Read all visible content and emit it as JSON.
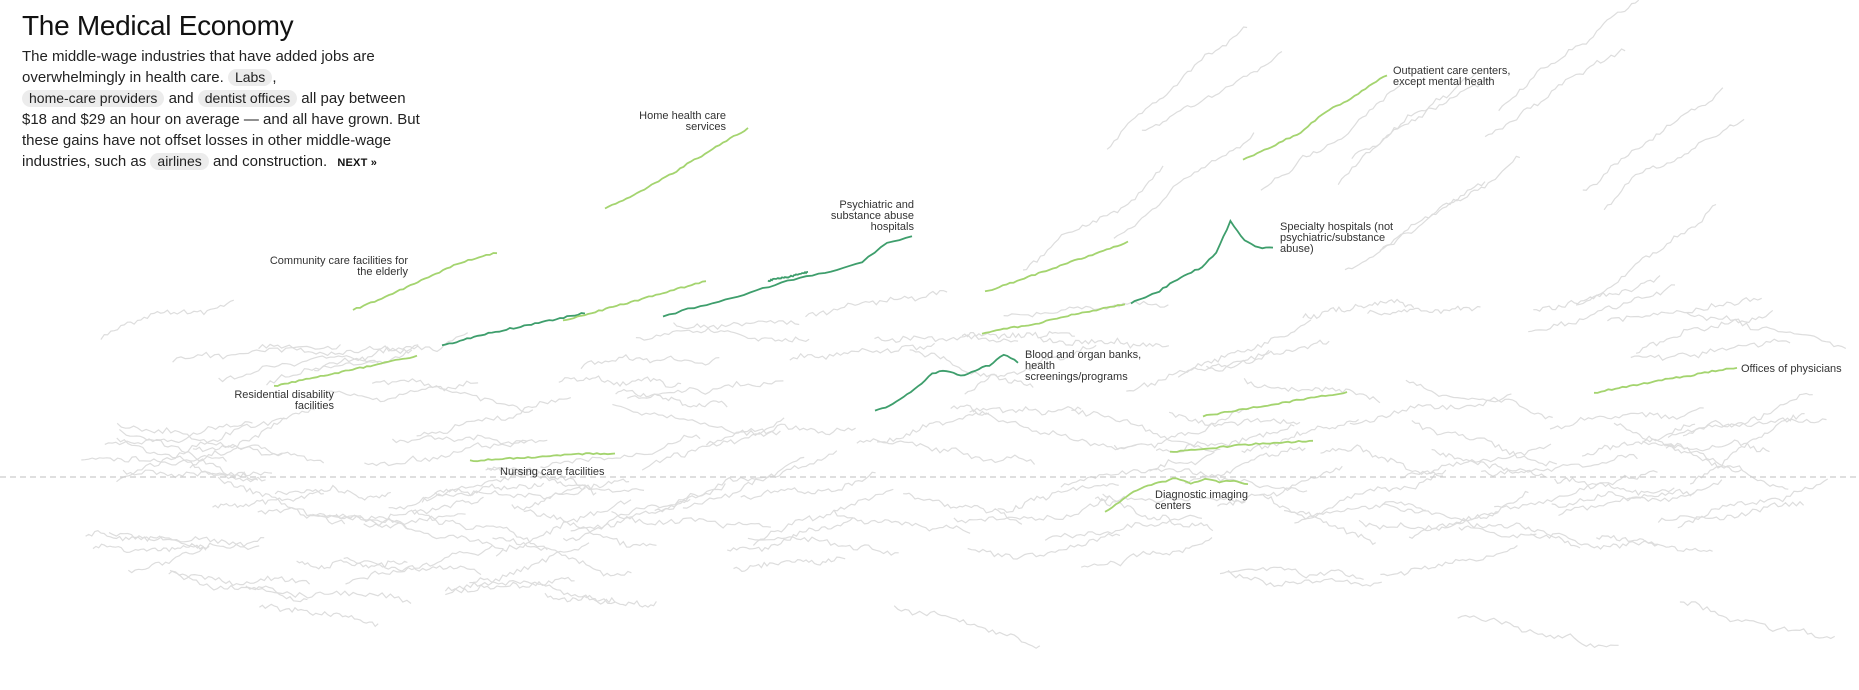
{
  "header": {
    "title": "The Medical Economy",
    "text_1": "The middle-wage industries that have added jobs are overwhelmingly in health care.",
    "pill_labs": "Labs",
    "comma": ",",
    "pill_homecare": "home-care providers",
    "text_2": "and",
    "pill_dentist": "dentist offices",
    "text_3": "all pay between $18 and $29 an hour on average — and all have grown. But these gains have not offset losses in other middle-wage industries, such as",
    "pill_airlines": "airlines",
    "text_4": "and construction.",
    "next_label": "NEXT »"
  },
  "chart_data": {
    "type": "line",
    "title": "The Medical Economy",
    "description_note": "Small multiples of employment trend lines; highlighted series are health-care industries, grey lines are other industries.",
    "baseline": "dashed reference line",
    "colors": {
      "dark_green": "#3e9e6c",
      "light_green": "#a4d46f",
      "grey": "#dddddd",
      "baseline": "#cccccc"
    },
    "series": [
      {
        "name": "Home health care services",
        "color": "light_green",
        "values": [
          0,
          6,
          12,
          19,
          26,
          33,
          41,
          48,
          56,
          63,
          70
        ]
      },
      {
        "name": "Outpatient care centers, except mental health",
        "color": "light_green",
        "values": [
          0,
          8,
          14,
          23,
          30,
          44,
          56,
          64,
          74,
          85,
          94
        ]
      },
      {
        "name": "Psychiatric and substance abuse hospitals",
        "color": "dark_green",
        "values": [
          0,
          6,
          10,
          15,
          21,
          27,
          31,
          35,
          41,
          55,
          60
        ]
      },
      {
        "name": "Community care facilities for the elderly",
        "color": "light_green",
        "values": [
          0,
          6,
          12,
          19,
          26,
          33,
          40,
          47,
          52,
          57,
          60
        ]
      },
      {
        "name": "Specialty hospitals (not psychiatric/substance abuse)",
        "color": "dark_green",
        "values": [
          0,
          4,
          10,
          18,
          24,
          30,
          42,
          68,
          52,
          46,
          46
        ]
      },
      {
        "name": "Residential disability facilities",
        "color": "light_green",
        "values": [
          0,
          4,
          8,
          12,
          16,
          20,
          24,
          28,
          32,
          36,
          40
        ]
      },
      {
        "name": "Blood and organ banks, health screenings/programs",
        "color": "dark_green",
        "values": [
          0,
          4,
          10,
          18,
          28,
          30,
          26,
          30,
          34,
          42,
          36
        ]
      },
      {
        "name": "Offices of physicians",
        "color": "light_green",
        "values": [
          0,
          4,
          8,
          11,
          14,
          18,
          21,
          24,
          28,
          31,
          34
        ]
      },
      {
        "name": "Nursing care facilities",
        "color": "light_green",
        "values": [
          0,
          1,
          2,
          3,
          4,
          5,
          6,
          7,
          8,
          8,
          8
        ]
      },
      {
        "name": "Diagnostic imaging centers",
        "color": "light_green",
        "values": [
          0,
          10,
          20,
          26,
          30,
          34,
          28,
          33,
          30,
          31,
          28
        ]
      }
    ]
  }
}
